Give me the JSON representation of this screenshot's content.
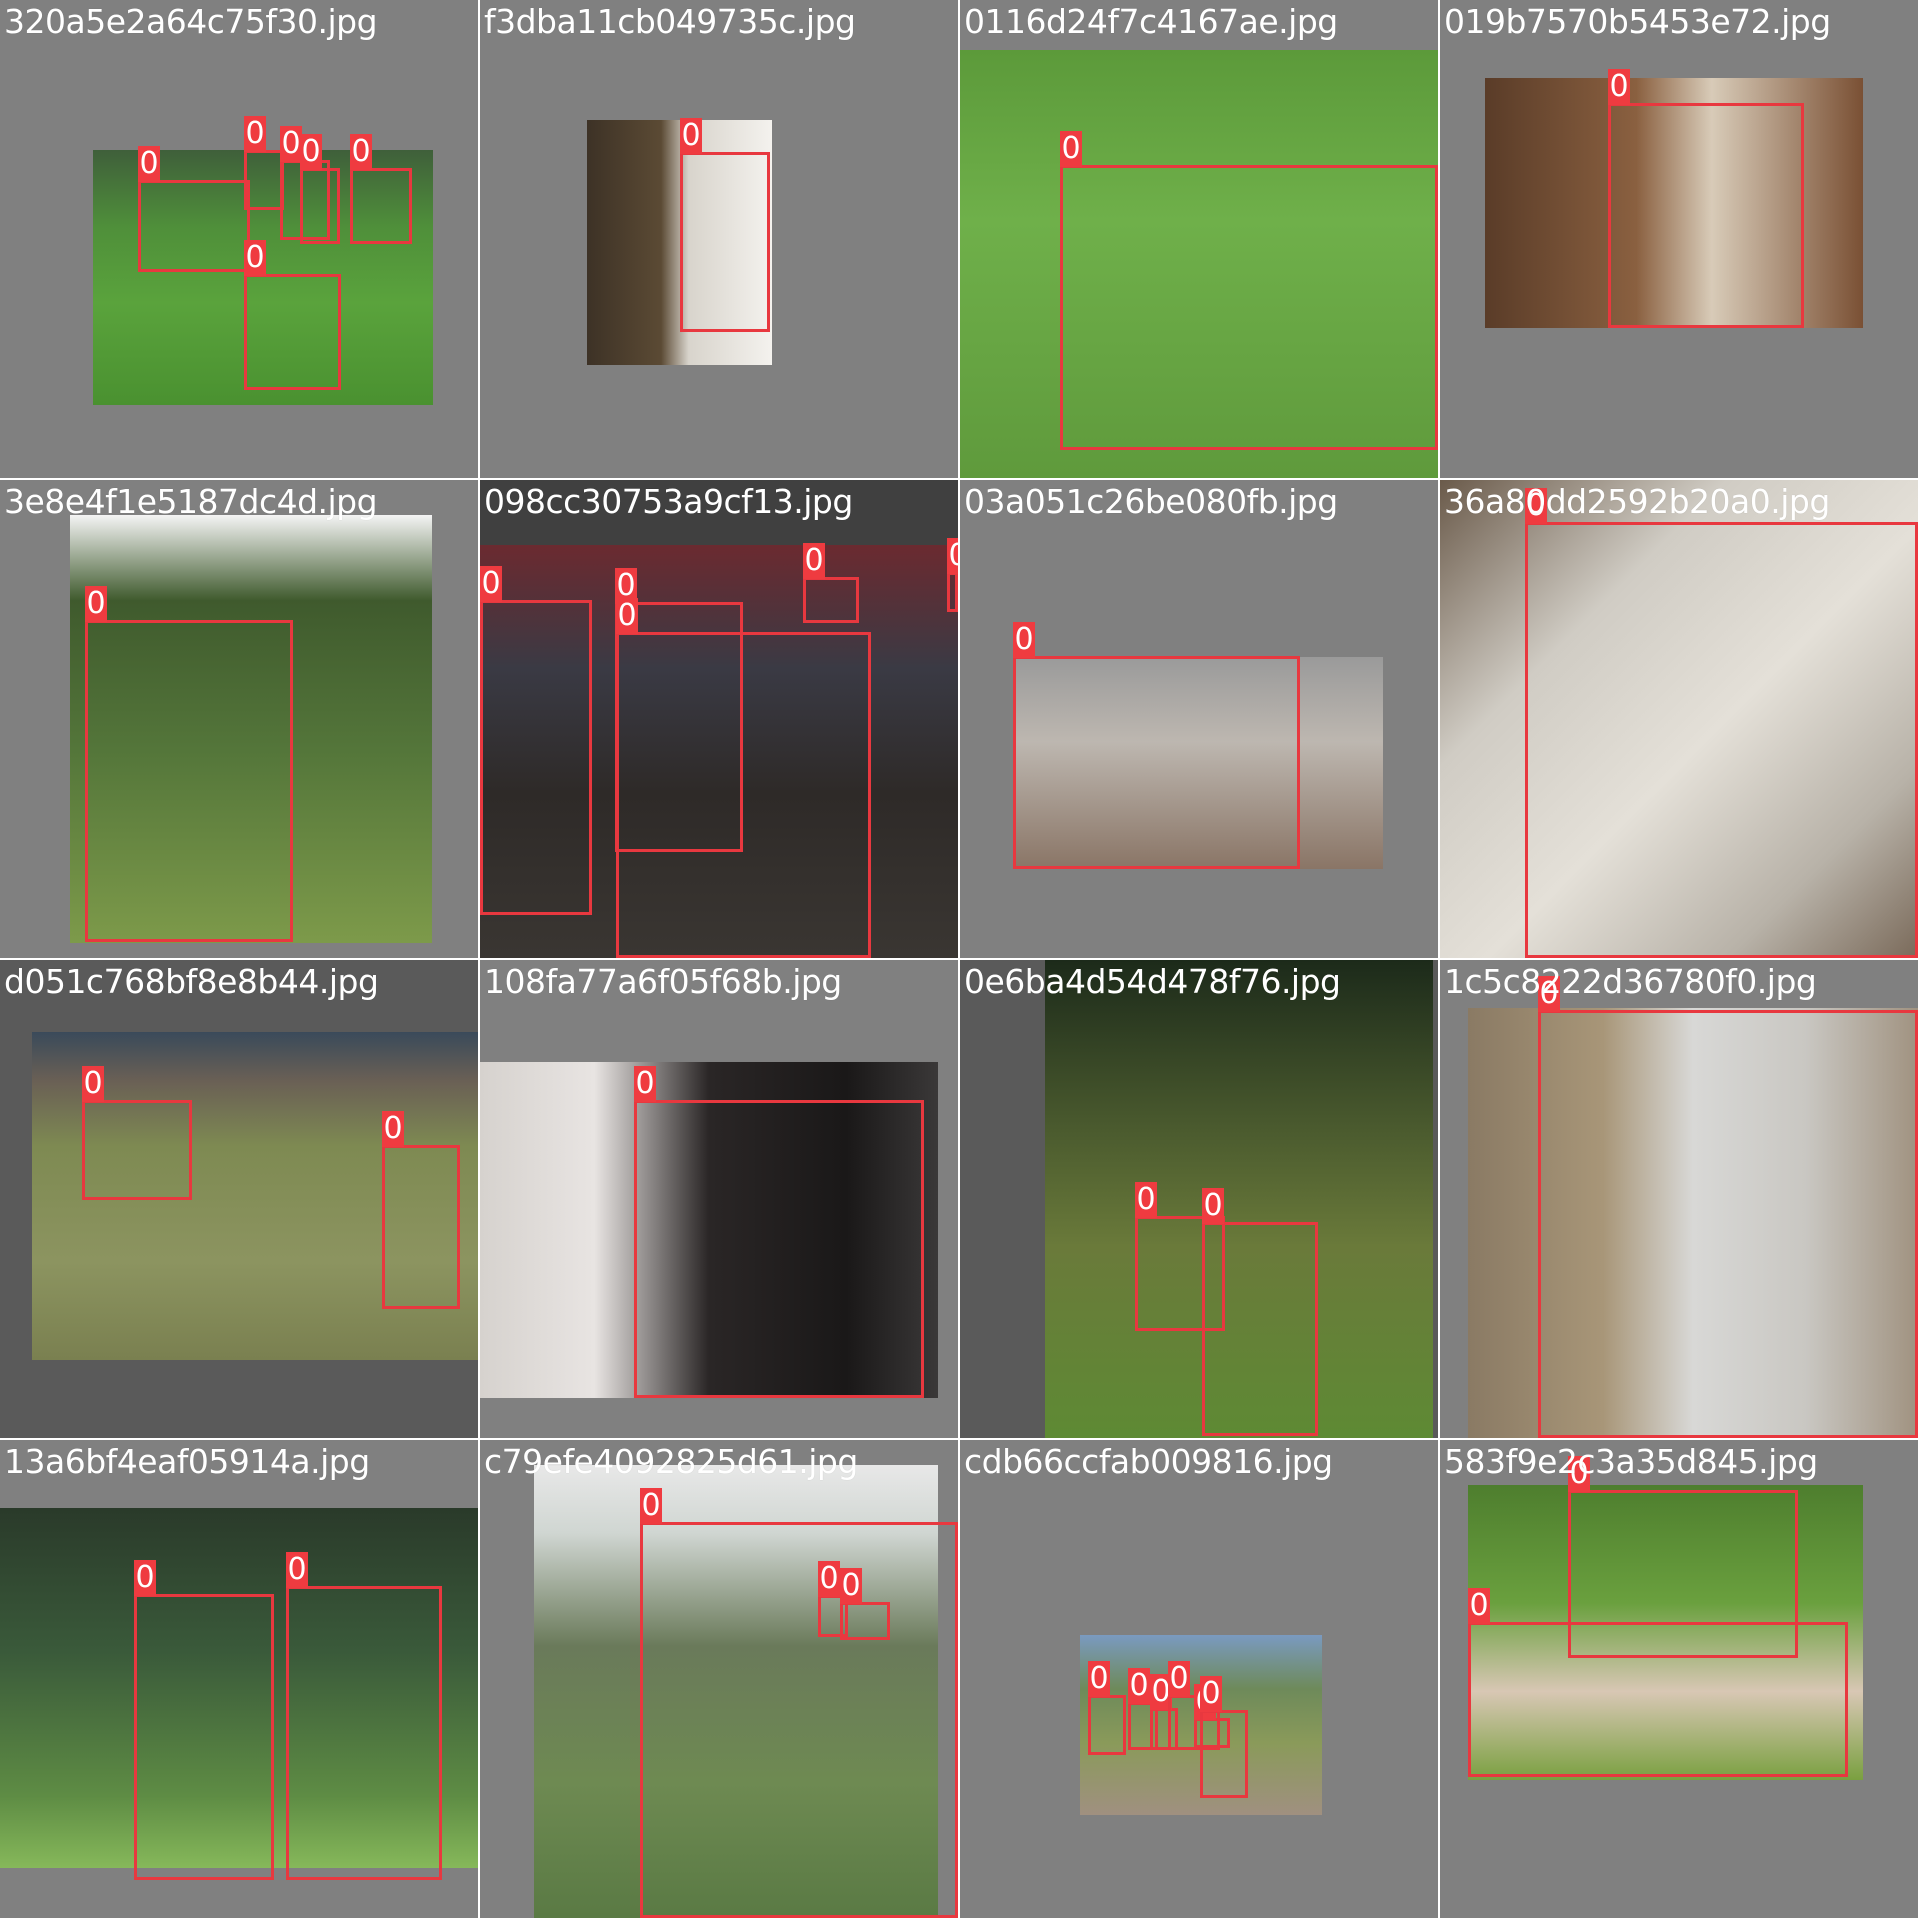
{
  "class_label": "0",
  "tiles": [
    {
      "filename": "320a5e2a64c75f30.jpg",
      "box_count": 6
    },
    {
      "filename": "f3dba11cb049735c.jpg",
      "box_count": 1
    },
    {
      "filename": "0116d24f7c4167ae.jpg",
      "box_count": 1
    },
    {
      "filename": "019b7570b5453e72.jpg",
      "box_count": 1
    },
    {
      "filename": "3e8e4f1e5187dc4d.jpg",
      "box_count": 1
    },
    {
      "filename": "098cc30753a9cf13.jpg",
      "box_count": 5
    },
    {
      "filename": "03a051c26be080fb.jpg",
      "box_count": 1
    },
    {
      "filename": "36a80dd2592b20a0.jpg",
      "box_count": 1
    },
    {
      "filename": "d051c768bf8e8b44.jpg",
      "box_count": 2
    },
    {
      "filename": "108fa77a6f05f68b.jpg",
      "box_count": 1
    },
    {
      "filename": "0e6ba4d54d478f76.jpg",
      "box_count": 2
    },
    {
      "filename": "1c5c8222d36780f0.jpg",
      "box_count": 1
    },
    {
      "filename": "13a6bf4eaf05914a.jpg",
      "box_count": 2
    },
    {
      "filename": "c79efe4092825d61.jpg",
      "box_count": 3
    },
    {
      "filename": "cdb66ccfab009816.jpg",
      "box_count": 6
    },
    {
      "filename": "583f9e2c3a35d845.jpg",
      "box_count": 2
    }
  ]
}
